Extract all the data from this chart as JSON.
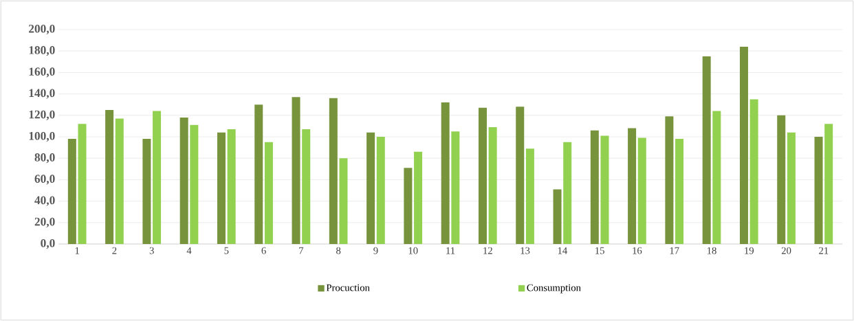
{
  "chart_data": {
    "type": "bar",
    "categories": [
      "1",
      "2",
      "3",
      "4",
      "5",
      "6",
      "7",
      "8",
      "9",
      "10",
      "11",
      "12",
      "13",
      "14",
      "15",
      "16",
      "17",
      "18",
      "19",
      "20",
      "21"
    ],
    "series": [
      {
        "name": "Procuction",
        "color": "#77933c",
        "values": [
          98,
          125,
          98,
          118,
          104,
          130,
          137,
          136,
          104,
          71,
          132,
          127,
          128,
          51,
          106,
          108,
          119,
          175,
          184,
          120,
          100
        ]
      },
      {
        "name": "Consumption",
        "color": "#92d050",
        "values": [
          112,
          117,
          124,
          111,
          107,
          95,
          107,
          80,
          100,
          86,
          105,
          109,
          89,
          95,
          101,
          99,
          98,
          124,
          135,
          104,
          112
        ]
      }
    ],
    "ylim": [
      0,
      200
    ],
    "yticks": [
      {
        "value": 0,
        "label": "0,0"
      },
      {
        "value": 20,
        "label": "20,0"
      },
      {
        "value": 40,
        "label": "40,0"
      },
      {
        "value": 60,
        "label": "60,0"
      },
      {
        "value": 80,
        "label": "80,0"
      },
      {
        "value": 100,
        "label": "100,0"
      },
      {
        "value": 120,
        "label": "120,0"
      },
      {
        "value": 140,
        "label": "140,0"
      },
      {
        "value": 160,
        "label": "160,0"
      },
      {
        "value": 180,
        "label": "180,0"
      },
      {
        "value": 200,
        "label": "200,0"
      }
    ],
    "grid": "y",
    "legend": "bottom"
  }
}
